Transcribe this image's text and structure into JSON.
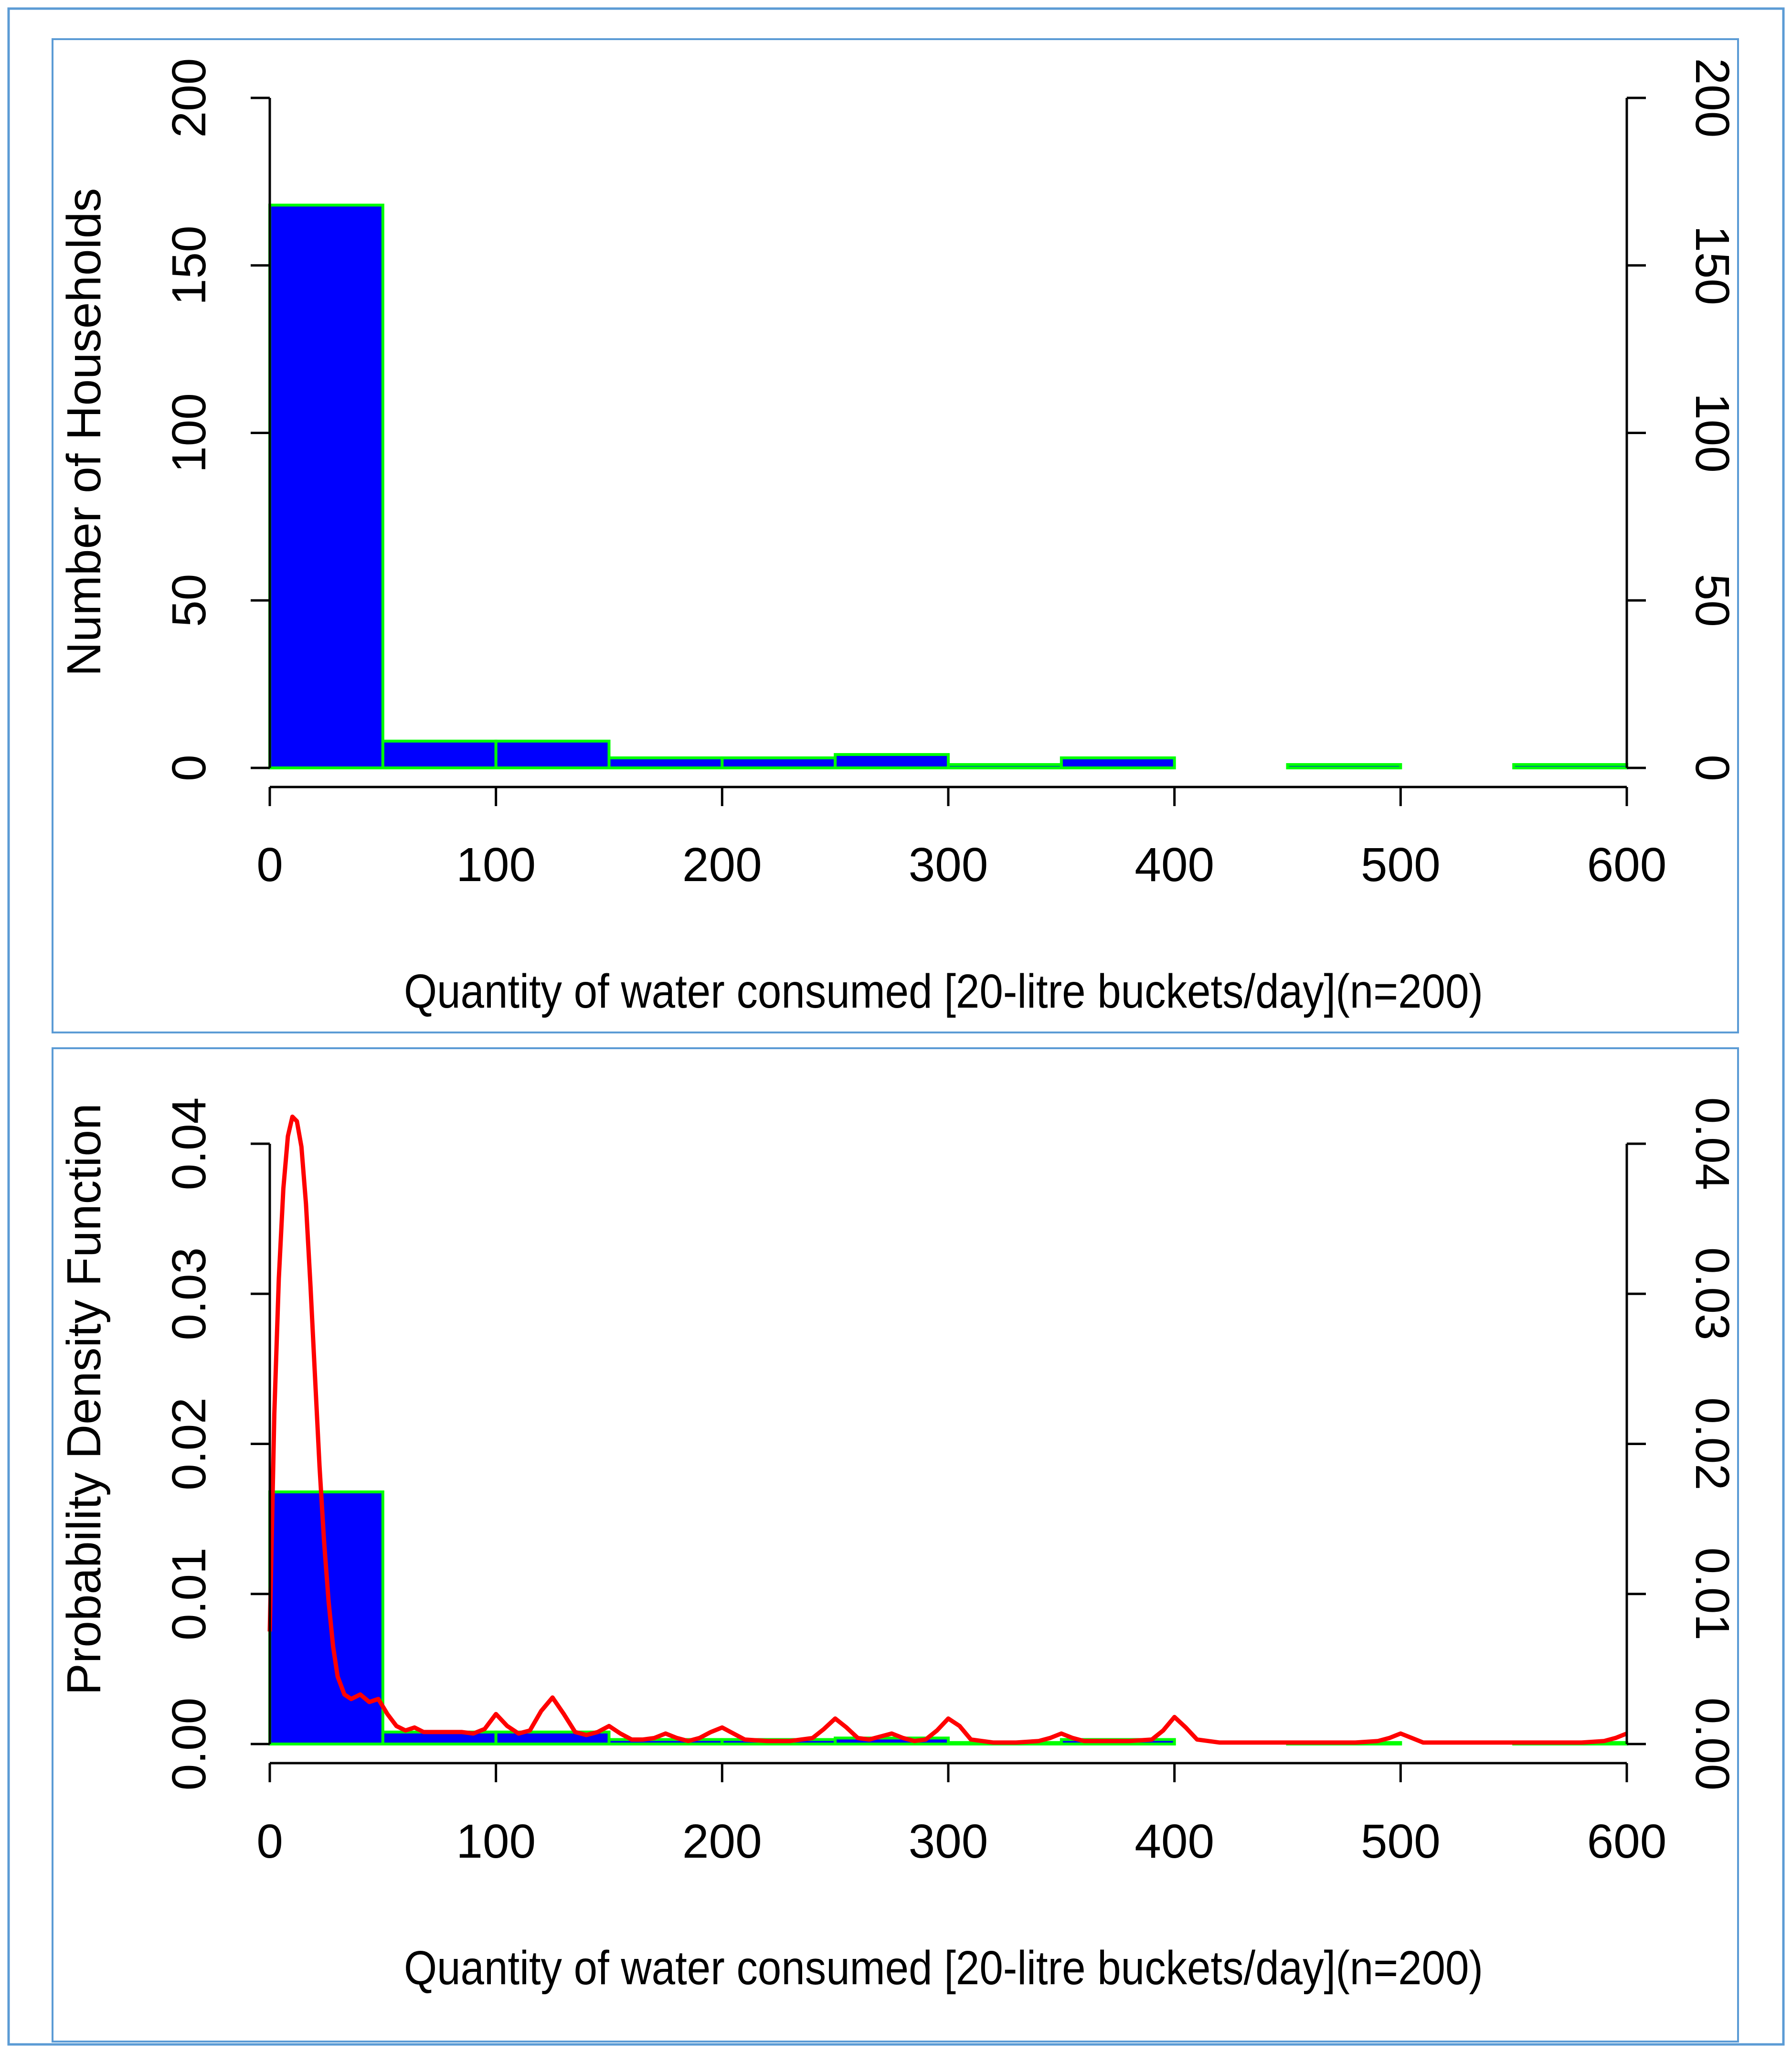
{
  "colors": {
    "frame": "#5b9bd5",
    "bar_fill": "#0000ff",
    "bar_edge": "#00ff00",
    "density_line": "#ff0000",
    "axis": "#000000"
  },
  "chart_data": [
    {
      "type": "bar",
      "subtype": "histogram",
      "xlabel": "Quantity of water consumed [20-litre buckets/day](n=200)",
      "ylabel": "Number of Households",
      "xlim": [
        0,
        600
      ],
      "ylim": [
        0,
        200
      ],
      "x_ticks": [
        "0",
        "100",
        "200",
        "300",
        "400",
        "500",
        "600"
      ],
      "y_ticks": [
        "0",
        "50",
        "100",
        "150",
        "200"
      ],
      "right_y_ticks": [
        "0",
        "50",
        "100",
        "150",
        "200"
      ],
      "bin_edges": [
        0,
        50,
        100,
        150,
        200,
        250,
        300,
        350,
        400,
        450,
        500,
        550,
        600
      ],
      "values": [
        168,
        8,
        8,
        3,
        3,
        4,
        1,
        3,
        0,
        1,
        0,
        1
      ]
    },
    {
      "type": "bar",
      "subtype": "histogram-density",
      "xlabel": "Quantity of water consumed [20-litre buckets/day](n=200)",
      "ylabel": "Probability Density Function",
      "xlim": [
        0,
        600
      ],
      "ylim": [
        0,
        0.04
      ],
      "x_ticks": [
        "0",
        "100",
        "200",
        "300",
        "400",
        "500",
        "600"
      ],
      "y_ticks": [
        "0.00",
        "0.01",
        "0.02",
        "0.03",
        "0.04"
      ],
      "right_y_ticks": [
        "0.00",
        "0.01",
        "0.02",
        "0.03",
        "0.04"
      ],
      "bin_edges": [
        0,
        50,
        100,
        150,
        200,
        250,
        300,
        350,
        400,
        450,
        500,
        550,
        600
      ],
      "values": [
        0.0168,
        0.0008,
        0.0008,
        0.0003,
        0.0003,
        0.0004,
        0.0001,
        0.0003,
        0,
        0.0001,
        0,
        0.0001
      ],
      "series": [
        {
          "name": "density",
          "type": "line",
          "x": [
            0,
            2,
            4,
            6,
            8,
            10,
            12,
            14,
            16,
            18,
            20,
            22,
            24,
            26,
            28,
            30,
            33,
            36,
            40,
            44,
            48,
            52,
            56,
            60,
            64,
            68,
            72,
            76,
            80,
            85,
            90,
            95,
            100,
            105,
            110,
            115,
            120,
            125,
            130,
            135,
            140,
            145,
            150,
            155,
            160,
            165,
            170,
            175,
            180,
            185,
            190,
            195,
            200,
            205,
            210,
            220,
            230,
            240,
            245,
            250,
            255,
            260,
            265,
            270,
            275,
            280,
            285,
            290,
            295,
            300,
            305,
            310,
            320,
            330,
            340,
            345,
            350,
            355,
            360,
            370,
            380,
            390,
            395,
            400,
            405,
            410,
            420,
            440,
            460,
            480,
            490,
            495,
            500,
            505,
            510,
            530,
            560,
            580,
            590,
            595,
            600
          ],
          "y": [
            0.0075,
            0.022,
            0.031,
            0.037,
            0.0405,
            0.0418,
            0.0415,
            0.0398,
            0.036,
            0.0305,
            0.0245,
            0.0185,
            0.0135,
            0.0095,
            0.0065,
            0.0045,
            0.0033,
            0.003,
            0.0033,
            0.0028,
            0.003,
            0.002,
            0.0012,
            0.0009,
            0.0011,
            0.0008,
            0.0008,
            0.0008,
            0.0008,
            0.0008,
            0.0007,
            0.001,
            0.002,
            0.0012,
            0.0007,
            0.0009,
            0.0022,
            0.0031,
            0.002,
            0.0008,
            0.0006,
            0.0008,
            0.0012,
            0.0007,
            0.0003,
            0.0003,
            0.0004,
            0.0007,
            0.0004,
            0.0002,
            0.0004,
            0.0008,
            0.0011,
            0.0007,
            0.0003,
            0.0002,
            0.0002,
            0.0004,
            0.001,
            0.0017,
            0.0011,
            0.0004,
            0.0003,
            0.0005,
            0.0007,
            0.0004,
            0.0002,
            0.0003,
            0.0009,
            0.0017,
            0.0012,
            0.0003,
            0.0001,
            0.0001,
            0.0002,
            0.0004,
            0.0007,
            0.0004,
            0.0002,
            0.0002,
            0.0002,
            0.0003,
            0.0009,
            0.0018,
            0.0011,
            0.0003,
            0.0001,
            0.0001,
            0.0001,
            0.0001,
            0.0002,
            0.0004,
            0.0007,
            0.0004,
            0.0001,
            0.0001,
            0.0001,
            0.0001,
            0.0002,
            0.0004,
            0.0007
          ]
        }
      ]
    }
  ]
}
